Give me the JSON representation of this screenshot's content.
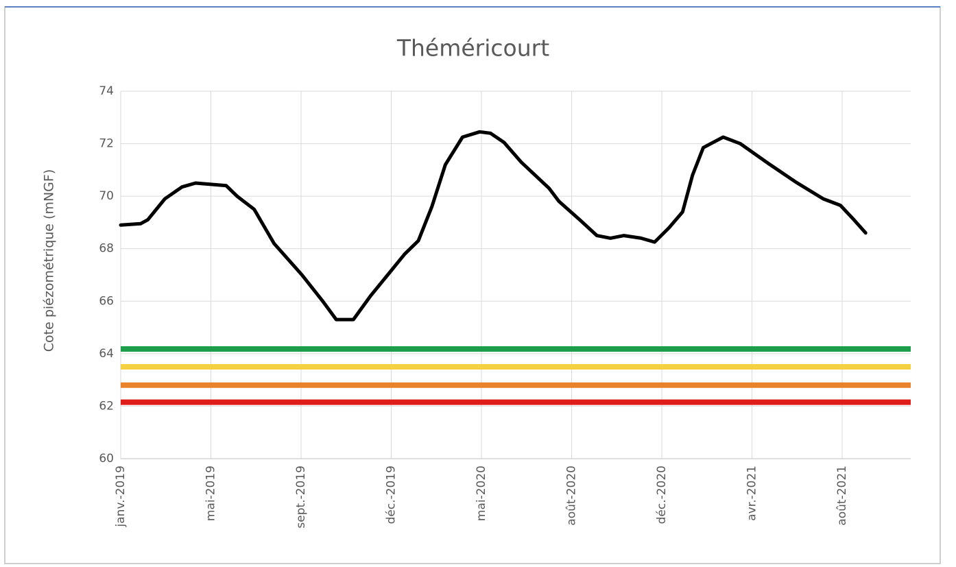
{
  "chart_data": {
    "type": "line",
    "title": "Théméricourt",
    "y_label": "Cote piézométrique (mNGF)",
    "xlim": [
      0,
      8.76
    ],
    "xticks": [
      {
        "value": 0,
        "label": "janv.-2019"
      },
      {
        "value": 1,
        "label": "mai-2019"
      },
      {
        "value": 2,
        "label": "sept.-2019"
      },
      {
        "value": 3,
        "label": "déc.-2019"
      },
      {
        "value": 4,
        "label": "mai-2020"
      },
      {
        "value": 5,
        "label": "août-2020"
      },
      {
        "value": 6,
        "label": "déc.-2020"
      },
      {
        "value": 7,
        "label": "avr.-2021"
      },
      {
        "value": 8,
        "label": "août-2021"
      }
    ],
    "ylim": [
      60,
      74
    ],
    "yticks": [
      60,
      62,
      64,
      66,
      68,
      70,
      72,
      74
    ],
    "grid": true,
    "x": [
      0,
      0.22,
      0.3,
      0.49,
      0.68,
      0.83,
      1.17,
      1.29,
      1.48,
      1.7,
      2.01,
      2.24,
      2.39,
      2.58,
      2.77,
      2.96,
      3.15,
      3.3,
      3.45,
      3.6,
      3.79,
      3.98,
      4.1,
      4.25,
      4.44,
      4.75,
      4.86,
      5.09,
      5.28,
      5.43,
      5.58,
      5.77,
      5.92,
      6.08,
      6.23,
      6.34,
      6.46,
      6.68,
      6.87,
      7.18,
      7.48,
      7.79,
      7.98,
      8.13,
      8.26
    ],
    "series": [
      {
        "color": "#000000",
        "values": [
          68.9,
          68.95,
          69.1,
          69.9,
          70.35,
          70.5,
          70.4,
          70.0,
          69.5,
          68.2,
          67.0,
          66.0,
          65.3,
          65.3,
          66.2,
          67.0,
          67.8,
          68.3,
          69.6,
          71.2,
          72.25,
          72.45,
          72.4,
          72.05,
          71.3,
          70.3,
          69.8,
          69.1,
          68.5,
          68.4,
          68.5,
          68.4,
          68.25,
          68.8,
          69.4,
          70.8,
          71.85,
          72.25,
          72.0,
          71.25,
          70.55,
          69.9,
          69.65,
          69.1,
          68.6
        ]
      }
    ],
    "hlines": [
      {
        "value": 64.18,
        "color": "#1e9e4a"
      },
      {
        "value": 63.5,
        "color": "#f5d040"
      },
      {
        "value": 62.8,
        "color": "#e8822b"
      },
      {
        "value": 62.15,
        "color": "#e01b1b"
      }
    ]
  }
}
